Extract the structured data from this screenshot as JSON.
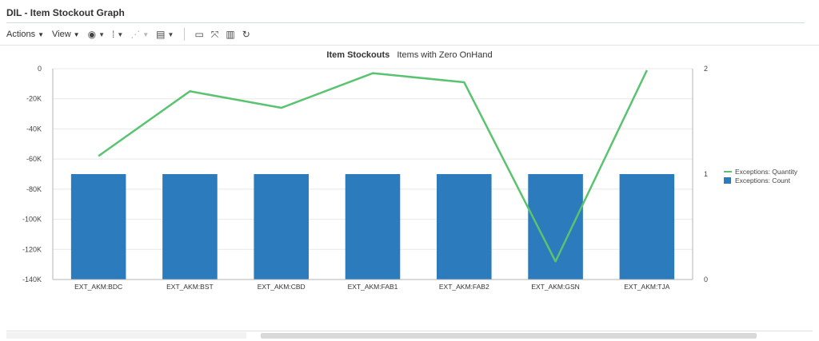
{
  "page": {
    "title": "DIL - Item Stockout Graph"
  },
  "toolbar": {
    "actions_label": "Actions",
    "view_label": "View",
    "icons": [
      "circle-arrow-icon",
      "freeze-icon",
      "hierarchy-icon",
      "print-icon",
      "export-icon",
      "detach-icon",
      "wrap-icon",
      "refresh-icon"
    ]
  },
  "chart_data": {
    "type": "bar",
    "title": "Item Stockouts",
    "subtitle": "Items with Zero OnHand",
    "categories": [
      "EXT_AKM:BDC",
      "EXT_AKM:BST",
      "EXT_AKM:CBD",
      "EXT_AKM:FAB1",
      "EXT_AKM:FAB2",
      "EXT_AKM:GSN",
      "EXT_AKM:TJA"
    ],
    "y_left": {
      "range": [
        -140000,
        0
      ],
      "ticks": [
        0,
        -20000,
        -40000,
        -60000,
        -80000,
        -100000,
        -120000,
        -140000
      ],
      "tick_labels": [
        "0",
        "-20K",
        "-40K",
        "-60K",
        "-80K",
        "-100K",
        "-120K",
        "-140K"
      ]
    },
    "y_right": {
      "range": [
        0,
        2
      ],
      "ticks": [
        2,
        1,
        0
      ],
      "tick_labels": [
        "2",
        "1",
        "0"
      ]
    },
    "series": [
      {
        "name": "Exceptions: Count",
        "type": "bar",
        "axis": "right",
        "color": "#2b7bbd",
        "values": [
          1,
          1,
          1,
          1,
          1,
          1,
          1
        ]
      },
      {
        "name": "Exceptions: Quantity",
        "type": "line",
        "axis": "left",
        "color": "#5ac36f",
        "values": [
          -58000,
          -15000,
          -26000,
          -3000,
          -9000,
          -128000,
          -1000
        ]
      }
    ],
    "legend_position": "right",
    "grid": true
  }
}
